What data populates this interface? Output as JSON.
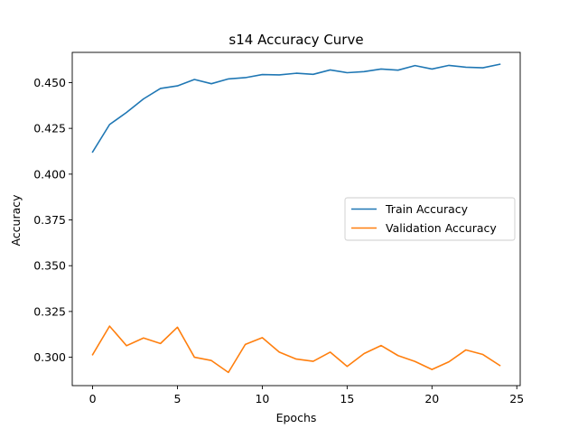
{
  "chart_data": {
    "type": "line",
    "title": "s14 Accuracy Curve",
    "xlabel": "Epochs",
    "ylabel": "Accuracy",
    "xlim": [
      -1.2,
      25.2
    ],
    "ylim": [
      0.2845,
      0.4665
    ],
    "x_ticks": [
      0,
      5,
      10,
      15,
      20,
      25
    ],
    "y_ticks": [
      0.3,
      0.325,
      0.35,
      0.375,
      0.4,
      0.425,
      0.45
    ],
    "y_tick_labels": [
      "0.300",
      "0.325",
      "0.350",
      "0.375",
      "0.400",
      "0.425",
      "0.450"
    ],
    "grid": false,
    "legend_position": "center-right",
    "x": [
      0,
      1,
      2,
      3,
      4,
      5,
      6,
      7,
      8,
      9,
      10,
      11,
      12,
      13,
      14,
      15,
      16,
      17,
      18,
      19,
      20,
      21,
      22,
      23,
      24
    ],
    "series": [
      {
        "name": "Train Accuracy",
        "color": "#1f77b4",
        "values": [
          0.4121,
          0.4271,
          0.4337,
          0.4411,
          0.4468,
          0.4482,
          0.4517,
          0.4494,
          0.452,
          0.4527,
          0.4544,
          0.4542,
          0.4551,
          0.4545,
          0.4569,
          0.4554,
          0.456,
          0.4574,
          0.4568,
          0.4593,
          0.4574,
          0.4594,
          0.4584,
          0.4581,
          0.46
        ]
      },
      {
        "name": "Validation Accuracy",
        "color": "#ff7f0e",
        "values": [
          0.3014,
          0.317,
          0.3063,
          0.3105,
          0.3075,
          0.3164,
          0.3,
          0.2982,
          0.2917,
          0.307,
          0.3107,
          0.3028,
          0.299,
          0.2978,
          0.3028,
          0.295,
          0.302,
          0.3064,
          0.3009,
          0.2977,
          0.2933,
          0.2975,
          0.304,
          0.3015,
          0.2955
        ]
      }
    ]
  }
}
